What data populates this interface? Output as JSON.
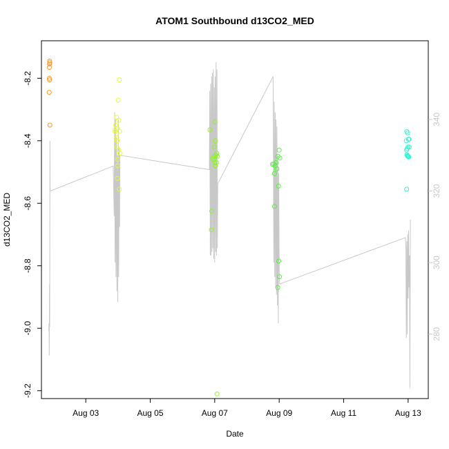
{
  "chart_data": {
    "type": "scatter",
    "title": "ATOM1 Southbound d13CO2_MED",
    "xlabel": "Date",
    "ylabel": "d13CO2_MED",
    "xlim": [
      "2022-08-01T15:00",
      "2022-08-13T15:00"
    ],
    "ylim": [
      -9.225,
      -8.08
    ],
    "y2lim": [
      262,
      362
    ],
    "xticks": [
      "Aug 03",
      "Aug 05",
      "Aug 07",
      "Aug 09",
      "Aug 11",
      "Aug 13"
    ],
    "xtick_dates": [
      "2022-08-03",
      "2022-08-05",
      "2022-08-07",
      "2022-08-09",
      "2022-08-11",
      "2022-08-13"
    ],
    "yticks": [
      -9.2,
      -9.0,
      -8.8,
      -8.6,
      -8.4,
      -8.2
    ],
    "ytick_labels": [
      "-9.2",
      "-9.0",
      "-8.8",
      "-8.6",
      "-8.4",
      "-8.2"
    ],
    "y2ticks": [
      280,
      300,
      320,
      340
    ],
    "y2tick_labels": [
      "280",
      "300",
      "320",
      "340"
    ],
    "grid": false,
    "legend": "none",
    "series": [
      {
        "color": "#F59A2A",
        "marker": "open-circle",
        "points": [
          [
            "2022-08-01T21:00",
            -8.155
          ],
          [
            "2022-08-01T21:05",
            -8.145
          ],
          [
            "2022-08-01T21:10",
            -8.15
          ],
          [
            "2022-08-01T20:55",
            -8.165
          ],
          [
            "2022-08-01T20:50",
            -8.2
          ],
          [
            "2022-08-01T21:05",
            -8.205
          ],
          [
            "2022-08-01T20:45",
            -8.245
          ],
          [
            "2022-08-01T21:15",
            -8.35
          ]
        ]
      },
      {
        "color": "#E6FA2E",
        "marker": "open-circle",
        "points": [
          [
            "2022-08-04T01:00",
            -8.205
          ],
          [
            "2022-08-03T23:00",
            -8.325
          ],
          [
            "2022-08-04T00:05",
            -8.27
          ],
          [
            "2022-08-03T21:40",
            -8.365
          ],
          [
            "2022-08-03T21:55",
            -8.37
          ],
          [
            "2022-08-03T22:20",
            -8.35
          ],
          [
            "2022-08-03T23:05",
            -8.39
          ],
          [
            "2022-08-03T23:30",
            -8.36
          ],
          [
            "2022-08-03T23:10",
            -8.42
          ],
          [
            "2022-08-04T00:40",
            -8.43
          ],
          [
            "2022-08-04T01:15",
            -8.44
          ],
          [
            "2022-08-04T00:00",
            -8.46
          ],
          [
            "2022-08-03T23:50",
            -8.48
          ],
          [
            "2022-08-03T23:40",
            -8.52
          ],
          [
            "2022-08-04T00:55",
            -8.555
          ],
          [
            "2022-08-04T01:10",
            -8.37
          ],
          [
            "2022-08-03T23:20",
            -8.4
          ],
          [
            "2022-08-04T00:30",
            -8.335
          ]
        ]
      },
      {
        "color": "#8CF520",
        "marker": "open-circle",
        "points": [
          [
            "2022-08-06T20:30",
            -8.365
          ],
          [
            "2022-08-06T21:30",
            -8.685
          ],
          [
            "2022-08-06T21:45",
            -8.625
          ],
          [
            "2022-08-06T22:20",
            -8.455
          ],
          [
            "2022-08-06T23:00",
            -8.46
          ],
          [
            "2022-08-06T23:30",
            -8.45
          ],
          [
            "2022-08-07T00:00",
            -8.47
          ],
          [
            "2022-08-07T00:30",
            -8.48
          ],
          [
            "2022-08-07T01:00",
            -8.445
          ],
          [
            "2022-08-07T01:30",
            -8.44
          ],
          [
            "2022-08-07T02:00",
            -8.45
          ],
          [
            "2022-08-06T23:45",
            -8.42
          ],
          [
            "2022-08-07T00:20",
            -8.4
          ],
          [
            "2022-08-07T00:10",
            -8.34
          ],
          [
            "2022-08-07T01:15",
            -8.47
          ],
          [
            "2022-08-07T01:45",
            -9.21
          ]
        ]
      },
      {
        "color": "#55F03C",
        "marker": "open-circle",
        "points": [
          [
            "2022-08-08T19:00",
            -8.475
          ],
          [
            "2022-08-08T20:00",
            -8.475
          ],
          [
            "2022-08-08T20:30",
            -8.505
          ],
          [
            "2022-08-08T21:00",
            -8.48
          ],
          [
            "2022-08-08T21:40",
            -8.47
          ],
          [
            "2022-08-08T22:20",
            -8.49
          ],
          [
            "2022-08-08T23:00",
            -8.45
          ],
          [
            "2022-08-09T00:00",
            -8.43
          ],
          [
            "2022-08-09T00:30",
            -8.455
          ],
          [
            "2022-08-08T23:30",
            -8.545
          ],
          [
            "2022-08-08T20:30",
            -8.61
          ],
          [
            "2022-08-08T23:40",
            -8.785
          ],
          [
            "2022-08-09T00:10",
            -8.835
          ],
          [
            "2022-08-08T23:00",
            -8.87
          ]
        ]
      },
      {
        "color": "#2EF5CF",
        "marker": "open-circle",
        "points": [
          [
            "2022-08-12T23:00",
            -8.37
          ],
          [
            "2022-08-12T23:40",
            -8.375
          ],
          [
            "2022-08-13T00:40",
            -8.395
          ],
          [
            "2022-08-13T00:20",
            -8.395
          ],
          [
            "2022-08-12T22:40",
            -8.4
          ],
          [
            "2022-08-13T00:00",
            -8.42
          ],
          [
            "2022-08-12T23:20",
            -8.425
          ],
          [
            "2022-08-12T22:50",
            -8.43
          ],
          [
            "2022-08-13T00:50",
            -8.42
          ],
          [
            "2022-08-12T23:10",
            -8.445
          ],
          [
            "2022-08-12T23:50",
            -8.45
          ],
          [
            "2022-08-13T00:10",
            -8.45
          ],
          [
            "2022-08-13T00:30",
            -8.452
          ],
          [
            "2022-08-12T23:30",
            -8.448
          ],
          [
            "2022-08-12T22:55",
            -8.555
          ]
        ]
      }
    ],
    "secondary_line": {
      "axis": "right",
      "color": "#c8c8c8",
      "points": [
        [
          "2022-08-01T20:30",
          281
        ],
        [
          "2022-08-01T20:40",
          283
        ],
        [
          "2022-08-01T20:50",
          274
        ],
        [
          "2022-08-01T21:00",
          294
        ],
        [
          "2022-08-01T21:10",
          282
        ],
        [
          "2022-08-01T21:20",
          334
        ],
        [
          "2022-08-01T21:25",
          320
        ],
        [
          "2022-08-03T20:30",
          327
        ],
        [
          "2022-08-03T21:10",
          313
        ],
        [
          "2022-08-03T21:30",
          342
        ],
        [
          "2022-08-03T21:50",
          300
        ],
        [
          "2022-08-03T22:10",
          340
        ],
        [
          "2022-08-03T22:30",
          296
        ],
        [
          "2022-08-03T22:50",
          335
        ],
        [
          "2022-08-03T23:10",
          292
        ],
        [
          "2022-08-03T23:30",
          330
        ],
        [
          "2022-08-03T23:50",
          289
        ],
        [
          "2022-08-04T00:10",
          340
        ],
        [
          "2022-08-04T00:30",
          296
        ],
        [
          "2022-08-04T00:50",
          332
        ],
        [
          "2022-08-04T01:10",
          310
        ],
        [
          "2022-08-04T01:25",
          330
        ],
        [
          "2022-08-06T20:00",
          326
        ],
        [
          "2022-08-06T20:20",
          348
        ],
        [
          "2022-08-06T20:40",
          302
        ],
        [
          "2022-08-06T21:00",
          350
        ],
        [
          "2022-08-06T21:20",
          302
        ],
        [
          "2022-08-06T21:40",
          352
        ],
        [
          "2022-08-06T22:00",
          303
        ],
        [
          "2022-08-06T22:20",
          353
        ],
        [
          "2022-08-06T22:40",
          304
        ],
        [
          "2022-08-06T23:00",
          354
        ],
        [
          "2022-08-06T23:20",
          301
        ],
        [
          "2022-08-06T23:40",
          349
        ],
        [
          "2022-08-07T00:00",
          300
        ],
        [
          "2022-08-07T00:20",
          352
        ],
        [
          "2022-08-07T00:40",
          303
        ],
        [
          "2022-08-07T01:00",
          356
        ],
        [
          "2022-08-07T01:20",
          302
        ],
        [
          "2022-08-07T01:40",
          354
        ],
        [
          "2022-08-07T02:00",
          304
        ],
        [
          "2022-08-07T02:15",
          322
        ],
        [
          "2022-08-08T19:30",
          352
        ],
        [
          "2022-08-08T20:00",
          300
        ],
        [
          "2022-08-08T20:20",
          345
        ],
        [
          "2022-08-08T20:40",
          296
        ],
        [
          "2022-08-08T21:00",
          342
        ],
        [
          "2022-08-08T21:20",
          293
        ],
        [
          "2022-08-08T21:40",
          340
        ],
        [
          "2022-08-08T22:00",
          291
        ],
        [
          "2022-08-08T22:20",
          338
        ],
        [
          "2022-08-08T22:40",
          288
        ],
        [
          "2022-08-08T23:00",
          330
        ],
        [
          "2022-08-08T23:20",
          283
        ],
        [
          "2022-08-08T23:40",
          325
        ],
        [
          "2022-08-09T00:00",
          298
        ],
        [
          "2022-08-09T00:20",
          294
        ],
        [
          "2022-08-12T22:00",
          307
        ],
        [
          "2022-08-12T22:20",
          304
        ],
        [
          "2022-08-12T22:40",
          279
        ],
        [
          "2022-08-12T23:00",
          306
        ],
        [
          "2022-08-12T23:20",
          280
        ],
        [
          "2022-08-12T23:40",
          308
        ],
        [
          "2022-08-13T00:00",
          290
        ],
        [
          "2022-08-13T00:20",
          309
        ],
        [
          "2022-08-13T00:40",
          293
        ],
        [
          "2022-08-13T01:00",
          302
        ],
        [
          "2022-08-13T01:20",
          265
        ],
        [
          "2022-08-13T01:40",
          312
        ]
      ]
    }
  }
}
